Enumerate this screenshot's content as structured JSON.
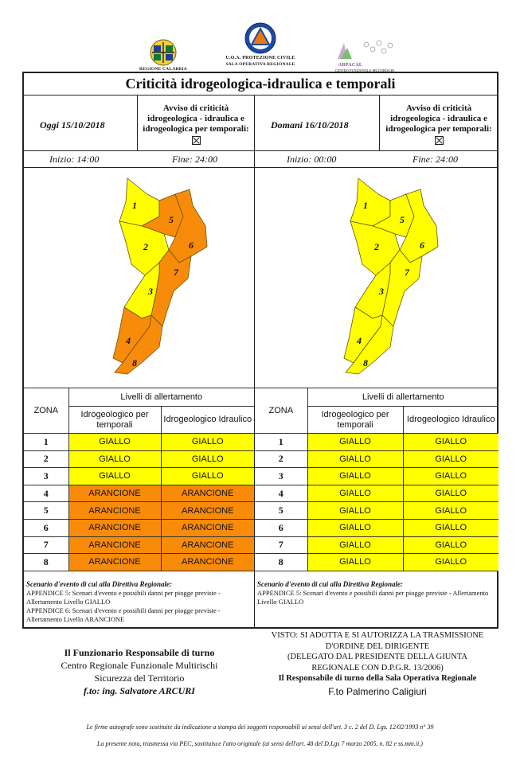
{
  "header": {
    "left_logo_label": "REGIONE CALABRIA",
    "center_logo_line1": "U.O.A. PROTEZIONE CIVILE",
    "center_logo_line2": "SALA OPERATIVA REGIONALE",
    "right_logo_label": "ARPACAL",
    "right_logo_sub": "CENTRO FUNZIONALE MULTIRISCHI"
  },
  "title": "Criticità idrogeologica-idraulica e temporali",
  "today": {
    "date_label": "Oggi 15/10/2018",
    "avviso": "Avviso di criticità idrogeologica - idraulica e idrogeologica per temporali:",
    "start": "Inizio: 14:00",
    "end": "Fine: 24:00",
    "zone_colors": {
      "1": "#ffff00",
      "2": "#ffff00",
      "3": "#ffff00",
      "4": "#f88b09",
      "5": "#f88b09",
      "6": "#f88b09",
      "7": "#f88b09",
      "8": "#f88b09"
    },
    "table": {
      "title": "Livelli di allertamento",
      "zona": "ZONA",
      "col1": "Idrogeologico per temporali",
      "col2": "Idrogeologico Idraulico",
      "rows": [
        {
          "zone": "1",
          "c1": "GIALLO",
          "c2": "GIALLO",
          "lvl": "G"
        },
        {
          "zone": "2",
          "c1": "GIALLO",
          "c2": "GIALLO",
          "lvl": "G"
        },
        {
          "zone": "3",
          "c1": "GIALLO",
          "c2": "GIALLO",
          "lvl": "G"
        },
        {
          "zone": "4",
          "c1": "ARANCIONE",
          "c2": "ARANCIONE",
          "lvl": "A"
        },
        {
          "zone": "5",
          "c1": "ARANCIONE",
          "c2": "ARANCIONE",
          "lvl": "A"
        },
        {
          "zone": "6",
          "c1": "ARANCIONE",
          "c2": "ARANCIONE",
          "lvl": "A"
        },
        {
          "zone": "7",
          "c1": "ARANCIONE",
          "c2": "ARANCIONE",
          "lvl": "A"
        },
        {
          "zone": "8",
          "c1": "ARANCIONE",
          "c2": "ARANCIONE",
          "lvl": "A"
        }
      ]
    },
    "scenario_title": "Scenario d'evento di cui alla Direttiva Regionale:",
    "scenario_text1": "APPENDICE 5: Scenari d'evento e possibili danni per piogge previste - Allertamento Livello GIALLO",
    "scenario_text2": "APPENDICE 6: Scenari d'evento e possibili danni per piogge previste - Allertamento Livello ARANCIONE"
  },
  "tomorrow": {
    "date_label": "Domani 16/10/2018",
    "avviso": "Avviso di criticità idrogeologica - idraulica e idrogeologica per temporali:",
    "start": "Inizio: 00:00",
    "end": "Fine: 24:00",
    "zone_colors": {
      "1": "#ffff00",
      "2": "#ffff00",
      "3": "#ffff00",
      "4": "#ffff00",
      "5": "#ffff00",
      "6": "#ffff00",
      "7": "#ffff00",
      "8": "#ffff00"
    },
    "table": {
      "title": "Livelli di allertamento",
      "zona": "ZONA",
      "col1": "Idrogeologico per temporali",
      "col2": "Idrogeologico Idraulico",
      "rows": [
        {
          "zone": "1",
          "c1": "GIALLO",
          "c2": "GIALLO",
          "lvl": "G"
        },
        {
          "zone": "2",
          "c1": "GIALLO",
          "c2": "GIALLO",
          "lvl": "G"
        },
        {
          "zone": "3",
          "c1": "GIALLO",
          "c2": "GIALLO",
          "lvl": "G"
        },
        {
          "zone": "4",
          "c1": "GIALLO",
          "c2": "GIALLO",
          "lvl": "G"
        },
        {
          "zone": "5",
          "c1": "GIALLO",
          "c2": "GIALLO",
          "lvl": "G"
        },
        {
          "zone": "6",
          "c1": "GIALLO",
          "c2": "GIALLO",
          "lvl": "G"
        },
        {
          "zone": "7",
          "c1": "GIALLO",
          "c2": "GIALLO",
          "lvl": "G"
        },
        {
          "zone": "8",
          "c1": "GIALLO",
          "c2": "GIALLO",
          "lvl": "G"
        }
      ]
    },
    "scenario_title": "Scenario d'evento di cui alla Direttiva Regionale:",
    "scenario_text1": "APPENDICE 5: Scenari d'evento e possibili danni per piogge previste - Allertamento Livello GIALLO"
  },
  "colors": {
    "giallo": "#ffff00",
    "arancione": "#f88b09"
  },
  "signature_left": {
    "line1": "Il Funzionario Responsabile di turno",
    "line2": "Centro Regionale Funzionale Multirischi",
    "line3": "Sicurezza del Territorio",
    "line4": "f.to: ing. Salvatore ARCURI"
  },
  "signature_right": {
    "line1": "VISTO: SI ADOTTA E SI AUTORIZZA LA TRASMISSIONE",
    "line2": "D'ORDINE DEL DIRIGENTE",
    "line3": "(DELEGATO DAL PRESIDENTE DELLA GIUNTA",
    "line4": "REGIONALE CON D.P.G.R. 13/2006)",
    "line5": "Il Responsabile di turno della Sala Operativa Regionale",
    "line6": "F.to Palmerino Caligiuri"
  },
  "footer": {
    "line1": "Le firme autografe sono sostituite da indicazione a stampa dei soggetti responsabili ai sensi dell'art. 3 c. 2 del D. Lgs. 12/02/1993 n° 39",
    "line2": "La presente nota, trasmessa via PEC, sostituisce l'atto originale (ai sensi dell'art. 48 del D.Lgs 7 marzo 2005, n. 82 e ss.mm.ii.)"
  }
}
